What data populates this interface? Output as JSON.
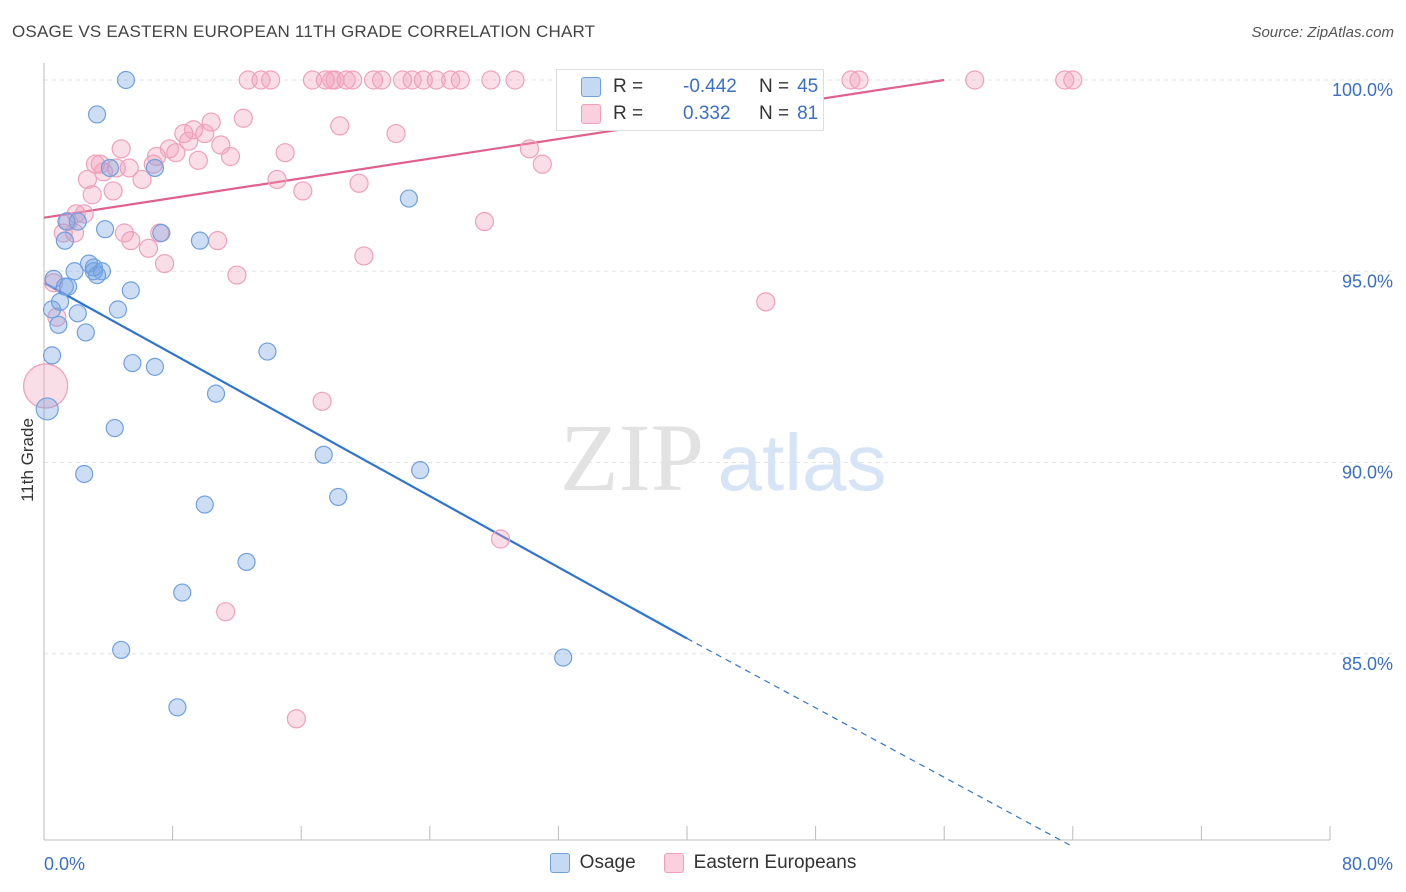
{
  "title": "OSAGE VS EASTERN EUROPEAN 11TH GRADE CORRELATION CHART",
  "source": "Source: ZipAtlas.com",
  "watermark": {
    "zip": "ZIP",
    "atlas": "atlas"
  },
  "legend_top": [
    {
      "r_label": "R =",
      "r_value": "-0.442",
      "n_label": "N =",
      "n_value": "45"
    },
    {
      "r_label": "R =",
      "r_value": "0.332",
      "n_label": "N =",
      "n_value": "81"
    }
  ],
  "legend_bottom": [
    "Osage",
    "Eastern Europeans"
  ],
  "chart_data": {
    "type": "scatter",
    "ylabel": "11th Grade",
    "xlim": [
      0,
      80
    ],
    "ylim": [
      80,
      100.5
    ],
    "x_tick_labels": [
      "0.0%",
      "80.0%"
    ],
    "y_ticks": [
      85,
      90,
      95,
      100
    ],
    "y_tick_labels": [
      "85.0%",
      "90.0%",
      "95.0%",
      "100.0%"
    ],
    "grid": true,
    "colors": {
      "osage": "#6fa1e0",
      "osage_line": "#2f74d0",
      "eastern": "#f0a0bb",
      "eastern_line": "#e0608e"
    },
    "series": [
      {
        "name": "Osage",
        "trend": {
          "x0": 0,
          "y0": 94.7,
          "x1": 40,
          "y1": 85.4,
          "dash_to_x": 63.8,
          "dash_to_y": 80.0
        },
        "points": [
          [
            0.2,
            91.4
          ],
          [
            0.5,
            94.0
          ],
          [
            0.5,
            92.8
          ],
          [
            0.6,
            94.8
          ],
          [
            0.9,
            93.6
          ],
          [
            1.0,
            94.2
          ],
          [
            1.3,
            95.8
          ],
          [
            1.3,
            94.6
          ],
          [
            1.4,
            96.3
          ],
          [
            1.5,
            94.6
          ],
          [
            1.9,
            95.0
          ],
          [
            2.1,
            96.3
          ],
          [
            2.1,
            93.9
          ],
          [
            2.5,
            89.7
          ],
          [
            2.6,
            93.4
          ],
          [
            2.8,
            95.2
          ],
          [
            3.1,
            95.0
          ],
          [
            3.1,
            95.1
          ],
          [
            3.3,
            99.1
          ],
          [
            3.3,
            94.9
          ],
          [
            3.6,
            95.0
          ],
          [
            3.8,
            96.1
          ],
          [
            4.1,
            97.7
          ],
          [
            4.4,
            90.9
          ],
          [
            4.6,
            94.0
          ],
          [
            4.8,
            85.1
          ],
          [
            5.1,
            100.0
          ],
          [
            5.4,
            94.5
          ],
          [
            5.5,
            92.6
          ],
          [
            6.9,
            92.5
          ],
          [
            6.9,
            97.7
          ],
          [
            7.3,
            96.0
          ],
          [
            8.3,
            83.6
          ],
          [
            8.6,
            86.6
          ],
          [
            9.7,
            95.8
          ],
          [
            10.0,
            88.9
          ],
          [
            10.7,
            91.8
          ],
          [
            12.6,
            87.4
          ],
          [
            13.9,
            92.9
          ],
          [
            17.4,
            90.2
          ],
          [
            18.3,
            89.1
          ],
          [
            22.7,
            96.9
          ],
          [
            23.4,
            89.8
          ],
          [
            32.3,
            84.9
          ],
          [
            32.5,
            100.0
          ]
        ]
      },
      {
        "name": "Eastern Europeans",
        "trend": {
          "x0": 0,
          "y0": 96.4,
          "x1": 56,
          "y1": 100.0
        },
        "points": [
          [
            0.1,
            92.0
          ],
          [
            0.6,
            94.7
          ],
          [
            0.8,
            93.8
          ],
          [
            1.2,
            96.0
          ],
          [
            1.5,
            96.3
          ],
          [
            1.9,
            96.0
          ],
          [
            2.0,
            96.5
          ],
          [
            2.5,
            96.5
          ],
          [
            2.7,
            97.4
          ],
          [
            3.0,
            97.0
          ],
          [
            3.2,
            97.8
          ],
          [
            3.5,
            97.8
          ],
          [
            3.7,
            97.6
          ],
          [
            4.3,
            97.1
          ],
          [
            4.5,
            97.7
          ],
          [
            4.8,
            98.2
          ],
          [
            5.0,
            96.0
          ],
          [
            5.3,
            97.7
          ],
          [
            5.4,
            95.8
          ],
          [
            6.1,
            97.4
          ],
          [
            6.5,
            95.6
          ],
          [
            6.8,
            97.8
          ],
          [
            7.0,
            98.0
          ],
          [
            7.2,
            96.0
          ],
          [
            7.5,
            95.2
          ],
          [
            7.8,
            98.2
          ],
          [
            8.2,
            98.1
          ],
          [
            8.7,
            98.6
          ],
          [
            9.0,
            98.4
          ],
          [
            9.3,
            98.7
          ],
          [
            9.6,
            97.9
          ],
          [
            10.0,
            98.6
          ],
          [
            10.4,
            98.9
          ],
          [
            10.8,
            95.8
          ],
          [
            11.0,
            98.3
          ],
          [
            11.3,
            86.1
          ],
          [
            11.6,
            98.0
          ],
          [
            12.0,
            94.9
          ],
          [
            12.4,
            99.0
          ],
          [
            12.7,
            100.0
          ],
          [
            13.5,
            100.0
          ],
          [
            14.1,
            100.0
          ],
          [
            14.5,
            97.4
          ],
          [
            15.0,
            98.1
          ],
          [
            15.7,
            83.3
          ],
          [
            16.1,
            97.1
          ],
          [
            16.7,
            100.0
          ],
          [
            17.3,
            91.6
          ],
          [
            17.5,
            100.0
          ],
          [
            17.9,
            100.0
          ],
          [
            18.1,
            100.0
          ],
          [
            18.4,
            98.8
          ],
          [
            18.8,
            100.0
          ],
          [
            19.2,
            100.0
          ],
          [
            19.6,
            97.3
          ],
          [
            19.9,
            95.4
          ],
          [
            20.5,
            100.0
          ],
          [
            21.0,
            100.0
          ],
          [
            21.9,
            98.6
          ],
          [
            22.3,
            100.0
          ],
          [
            22.9,
            100.0
          ],
          [
            23.6,
            100.0
          ],
          [
            24.4,
            100.0
          ],
          [
            25.3,
            100.0
          ],
          [
            25.9,
            100.0
          ],
          [
            27.4,
            96.3
          ],
          [
            27.8,
            100.0
          ],
          [
            28.4,
            88.0
          ],
          [
            29.3,
            100.0
          ],
          [
            30.2,
            98.2
          ],
          [
            31.0,
            97.8
          ],
          [
            35.4,
            100.0
          ],
          [
            37.1,
            100.0
          ],
          [
            38.8,
            100.0
          ],
          [
            44.9,
            94.2
          ],
          [
            47.9,
            100.0
          ],
          [
            50.2,
            100.0
          ],
          [
            50.7,
            100.0
          ],
          [
            57.9,
            100.0
          ],
          [
            63.5,
            100.0
          ],
          [
            64.0,
            100.0
          ]
        ]
      }
    ]
  }
}
